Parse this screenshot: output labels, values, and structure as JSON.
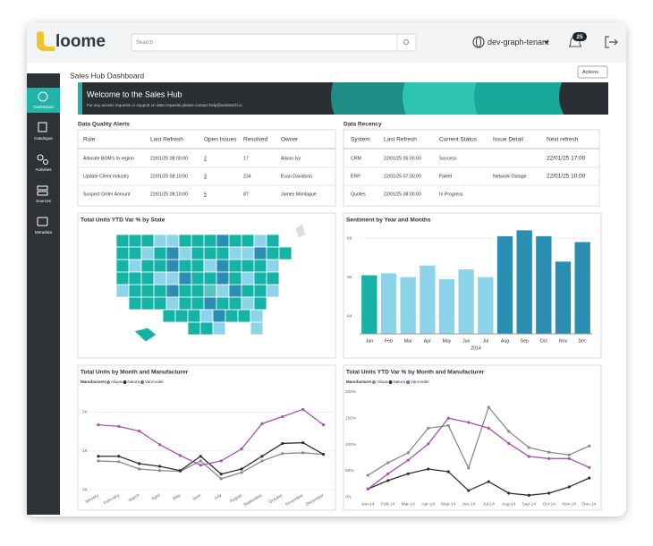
{
  "header": {
    "logo": "loome",
    "search_placeholder": "Search",
    "tenant": "dev-graph-tenant",
    "notification_count": 25
  },
  "sidebar": [
    "Dashboard",
    "Catalogue",
    "Activities",
    "Sources",
    "Metadata"
  ],
  "page": {
    "title": "Sales Hub Dashboard",
    "actions": "Actions"
  },
  "banner": {
    "title": "Welcome to the Sales Hub",
    "subtitle": "For any access requests or support on data requests please contact help@salestech.io"
  },
  "data_quality": {
    "title": "Data Quality Alerts",
    "columns": [
      "Rule",
      "Last Refresh",
      "Open Issues",
      "Resolved",
      "Owner"
    ],
    "rows": [
      [
        "Allocate BOM's to region",
        "22/01/25 08:00:00",
        2,
        17,
        "Alison Ivy"
      ],
      [
        "Update Client Industry",
        "22/01/25 08:10:00",
        3,
        234,
        "Evan Davidson"
      ],
      [
        "Suspect Order Amount",
        "22/01/25 08:10:00",
        5,
        87,
        "James Montague"
      ]
    ]
  },
  "data_recency": {
    "title": "Data Recency",
    "columns": [
      "System",
      "Last Refresh",
      "Current Status",
      "Issue Detail",
      "Next refresh"
    ],
    "rows": [
      [
        "CRM",
        "22/01/25 05:00:00",
        "Success",
        null,
        "22/01/25 17:00"
      ],
      [
        "ERP",
        "22/01/25 07:00:00",
        "Failed",
        "Network Outage",
        "22/01/25 10:00"
      ],
      [
        "Quotes",
        "22/01/25 08:00:00",
        "In Progress",
        null,
        null
      ]
    ]
  },
  "charts": {
    "map": {
      "type": "map",
      "title": "Total Units YTD Var % by State"
    },
    "sentiment": {
      "type": "bar",
      "title": "Sentiment by Year and Months",
      "categories": [
        "Jan",
        "Feb",
        "Mar",
        "Apr",
        "May",
        "Jun",
        "Jul",
        "Aug",
        "Sep",
        "Oct",
        "Nov",
        "Dec"
      ],
      "x_group_label": "2014",
      "values": [
        66.1,
        66.2,
        66.0,
        66.6,
        65.9,
        66.4,
        66.0,
        68.1,
        68.4,
        68.1,
        66.8,
        67.8
      ],
      "colors": [
        "#14b3a5",
        "#8dd4ea",
        "#8dd4ea",
        "#8dd4ea",
        "#8dd4ea",
        "#8dd4ea",
        "#8dd4ea",
        "#2a8db2",
        "#2a8db2",
        "#2a8db2",
        "#2a8db2",
        "#2a8db2"
      ],
      "ylim": [
        63.1,
        68.6
      ],
      "yticks": [
        64,
        66,
        68
      ],
      "grid": true
    },
    "units_by_month": {
      "type": "line",
      "title": "Total Units by Month and Manufacturer",
      "legend_title": "Manufacturer",
      "label_rotation": true,
      "categories": [
        "January",
        "February",
        "March",
        "April",
        "May",
        "June",
        "July",
        "August",
        "September",
        "October",
        "November",
        "December"
      ],
      "series": [
        {
          "name": "Aliqua",
          "color": "#8a8a8a",
          "values": [
            740,
            720,
            530,
            490,
            470,
            740,
            280,
            440,
            740,
            930,
            950,
            910
          ]
        },
        {
          "name": "Natura",
          "color": "#2e3133",
          "values": [
            860,
            860,
            670,
            600,
            490,
            860,
            400,
            530,
            860,
            1190,
            1210,
            910
          ]
        },
        {
          "name": "VanArsdel",
          "color": "#a654a8",
          "values": [
            1670,
            1630,
            1510,
            1160,
            880,
            630,
            740,
            1050,
            1700,
            1880,
            2070,
            1670
          ]
        }
      ],
      "ylim": [
        0,
        2700
      ],
      "yticks": [
        {
          "value": 0,
          "label": "0K"
        },
        {
          "value": 1000,
          "label": "1K"
        },
        {
          "value": 2000,
          "label": "2K"
        }
      ],
      "grid": true
    },
    "ytd_by_month": {
      "type": "line",
      "title": "Total Units YTD Var % by Month and Manufacturer",
      "legend_title": "Manufacturer",
      "label_rotation": false,
      "categories": [
        "Jan-14",
        "Feb-14",
        "Mar-14",
        "Apr-14",
        "May-14",
        "Jun-14",
        "Jul-14",
        "Aug-14",
        "Sep-14",
        "Oct-14",
        "Nov-14",
        "Dec-14"
      ],
      "series": [
        {
          "name": "Aliqua",
          "color": "#8a8a8a",
          "values": [
            41,
            65,
            84,
            131,
            136,
            55,
            171,
            125,
            94,
            85,
            80,
            97
          ]
        },
        {
          "name": "Natura",
          "color": "#2e3133",
          "values": [
            15,
            31,
            44,
            53,
            48,
            12,
            29,
            7,
            3,
            7,
            19,
            36
          ]
        },
        {
          "name": "VanArsdel",
          "color": "#a654a8",
          "values": [
            15,
            44,
            70,
            101,
            150,
            142,
            131,
            102,
            77,
            73,
            73,
            56
          ]
        }
      ],
      "ylim": [
        -5,
        205
      ],
      "yticks": [
        {
          "value": 0,
          "label": "0%"
        },
        {
          "value": 50,
          "label": "50%"
        },
        {
          "value": 100,
          "label": "100%"
        },
        {
          "value": 150,
          "label": "150%"
        },
        {
          "value": 200,
          "label": "200%"
        }
      ],
      "grid": false
    }
  }
}
